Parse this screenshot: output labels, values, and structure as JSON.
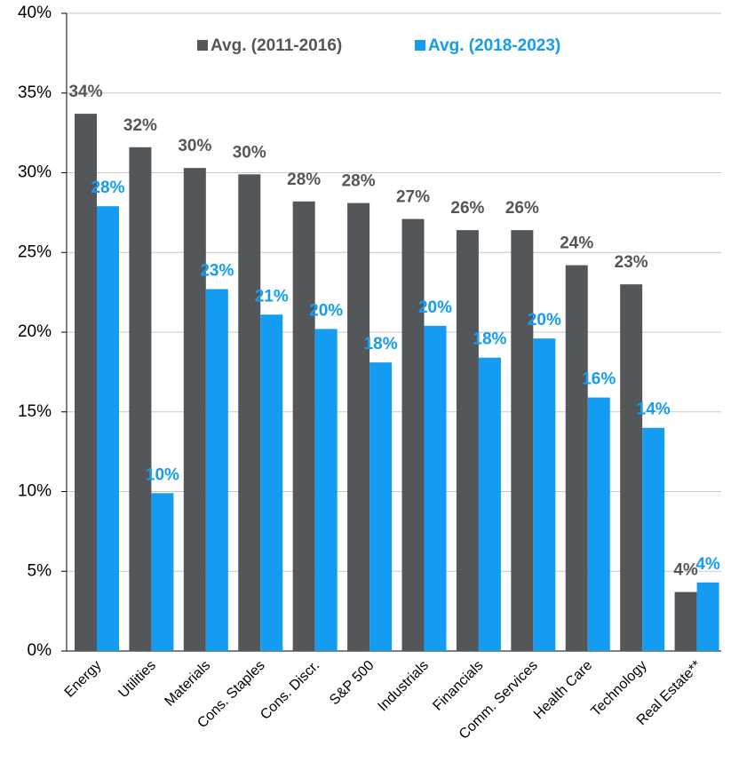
{
  "chart_data": {
    "type": "bar",
    "categories": [
      "Energy",
      "Utilities",
      "Materials",
      "Cons. Staples",
      "Cons. Discr.",
      "S&P 500",
      "Industrials",
      "Financials",
      "Comm. Services",
      "Health Care",
      "Technology",
      "Real Estate**"
    ],
    "series": [
      {
        "name": "Avg. (2011-2016)",
        "color": "#54575a",
        "values": [
          33.7,
          31.6,
          30.3,
          29.9,
          28.2,
          28.1,
          27.1,
          26.4,
          26.4,
          24.2,
          23.0,
          3.7
        ],
        "value_labels": [
          "34%",
          "32%",
          "30%",
          "30%",
          "28%",
          "28%",
          "27%",
          "26%",
          "26%",
          "24%",
          "23%",
          "4%"
        ]
      },
      {
        "name": "Avg. (2018-2023)",
        "color": "#139cf2",
        "values": [
          27.9,
          9.9,
          22.7,
          21.1,
          20.2,
          18.1,
          20.4,
          18.4,
          19.6,
          15.9,
          14.0,
          4.3
        ],
        "value_labels": [
          "28%",
          "10%",
          "23%",
          "21%",
          "20%",
          "18%",
          "20%",
          "18%",
          "20%",
          "16%",
          "14%",
          "4%"
        ]
      }
    ],
    "ylim": [
      0,
      40
    ],
    "yticks": [
      {
        "value": 0,
        "label": "0%"
      },
      {
        "value": 5,
        "label": "5%"
      },
      {
        "value": 10,
        "label": "10%"
      },
      {
        "value": 15,
        "label": "15%"
      },
      {
        "value": 20,
        "label": "20%"
      },
      {
        "value": 25,
        "label": "25%"
      },
      {
        "value": 30,
        "label": "30%"
      },
      {
        "value": 35,
        "label": "35%"
      },
      {
        "value": 40,
        "label": "40%"
      }
    ],
    "grid": true,
    "legend": "top"
  }
}
